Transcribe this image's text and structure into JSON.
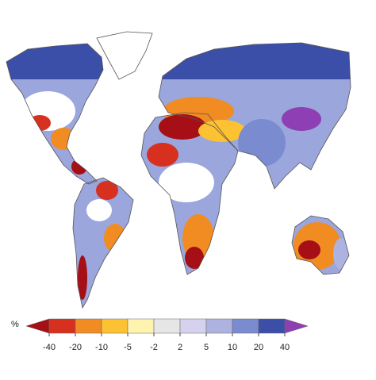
{
  "colorbar": {
    "unit_label": "%",
    "ticks": [
      -40,
      -20,
      -10,
      -5,
      -2,
      2,
      5,
      10,
      20,
      40
    ],
    "colors": [
      "#a50f15",
      "#d7301f",
      "#f08c22",
      "#fdc233",
      "#fff3b0",
      "#e6e6e6",
      "#d6d2ee",
      "#aeb2e0",
      "#7a8ccf",
      "#3c4fa8",
      "#8e3fb3"
    ]
  }
}
